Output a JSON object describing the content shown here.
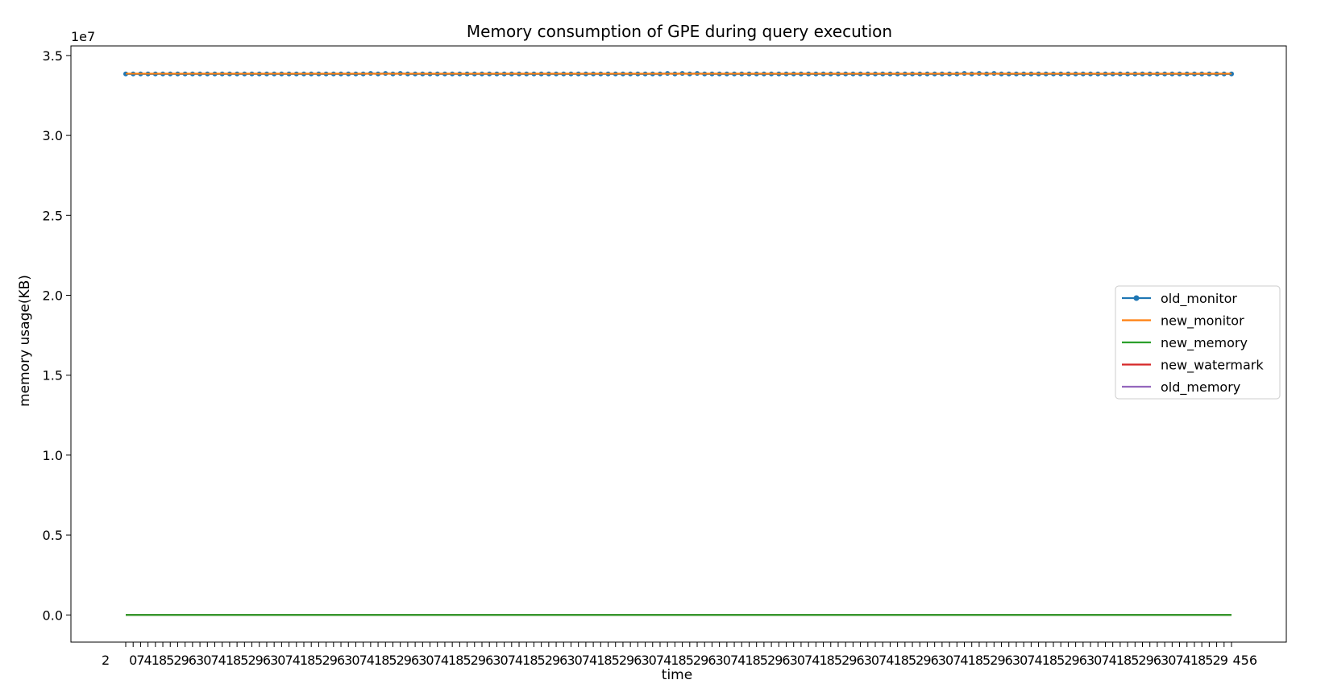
{
  "chart_data": {
    "type": "line",
    "title": "Memory consumption of GPE during query execution",
    "xlabel": "time",
    "ylabel": "memory usage(KB)",
    "y_offset_label": "1e7",
    "ylim": [
      -1700000,
      35600000
    ],
    "y_ticks": [
      0,
      5000000,
      10000000,
      15000000,
      20000000,
      25000000,
      30000000,
      35000000
    ],
    "y_tick_labels": [
      "0.0",
      "0.5",
      "1.0",
      "1.5",
      "2.0",
      "2.5",
      "3.0",
      "3.5"
    ],
    "x_count": 150,
    "x_first_label": "2",
    "x_last_label": "456",
    "grid": false,
    "legend_position": "center-right",
    "series": [
      {
        "name": "old_monitor",
        "color": "#1f77b4",
        "marker": "circle",
        "base": 33850000,
        "pattern": [
          0,
          0,
          0,
          0,
          0,
          0,
          0,
          0,
          0,
          0,
          0,
          0,
          0,
          0,
          0,
          0,
          0,
          0,
          0,
          0,
          0,
          0,
          0,
          0,
          0,
          0,
          0,
          0,
          0,
          0,
          0,
          0,
          0,
          30000,
          0,
          30000,
          0,
          30000,
          0,
          0
        ]
      },
      {
        "name": "new_monitor",
        "color": "#ff7f0e",
        "marker": "none",
        "base": 33860000,
        "pattern": [
          0
        ]
      },
      {
        "name": "new_memory",
        "color": "#2ca02c",
        "marker": "none",
        "base": 0,
        "pattern": [
          0
        ]
      },
      {
        "name": "new_watermark",
        "color": "#d62728",
        "marker": "none",
        "base": 0,
        "pattern": [
          0
        ]
      },
      {
        "name": "old_memory",
        "color": "#9467bd",
        "marker": "none",
        "base": 0,
        "pattern": [
          0
        ]
      }
    ]
  }
}
